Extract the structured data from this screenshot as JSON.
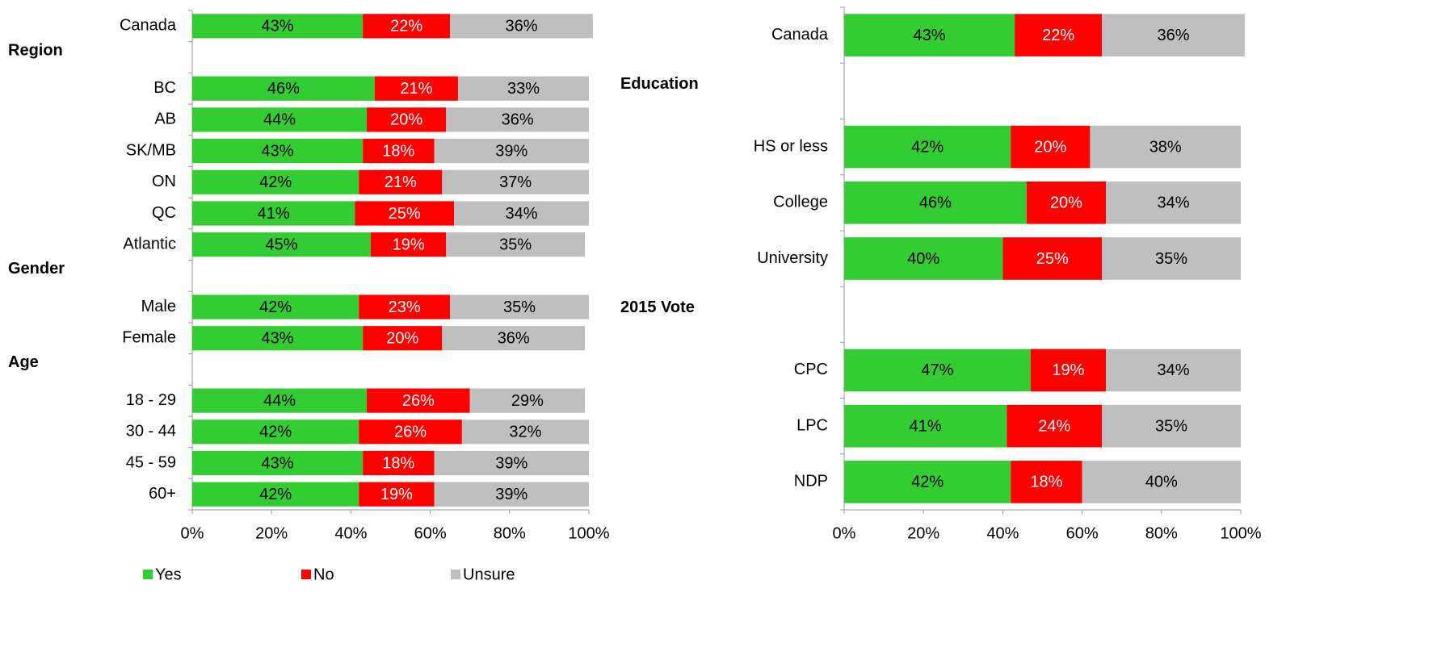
{
  "chart_data": [
    {
      "type": "stacked-bar-horizontal",
      "categories": [
        "Canada",
        null,
        "BC",
        "AB",
        "SK/MB",
        "ON",
        "QC",
        "Atlantic",
        null,
        "Male",
        "Female",
        null,
        "18 - 29",
        "30 - 44",
        "45 - 59",
        "60+"
      ],
      "row_headings": [
        null,
        "Region",
        null,
        null,
        null,
        null,
        null,
        null,
        "Gender",
        null,
        null,
        "Age",
        null,
        null,
        null,
        null
      ],
      "series": [
        {
          "name": "Yes",
          "color": "#33cc33",
          "label_color": "#000000",
          "values": [
            43,
            null,
            46,
            44,
            43,
            42,
            41,
            45,
            null,
            42,
            43,
            null,
            44,
            42,
            43,
            42
          ],
          "value_labels": [
            "43%",
            null,
            "46%",
            "44%",
            "43%",
            "42%",
            "41%",
            "45%",
            null,
            "42%",
            "43%",
            null,
            "44%",
            "42%",
            "43%",
            "42%"
          ]
        },
        {
          "name": "No",
          "color": "#ff0000",
          "label_color": "#ffffff",
          "values": [
            22,
            null,
            21,
            20,
            18,
            21,
            25,
            19,
            null,
            23,
            20,
            null,
            26,
            26,
            18,
            19
          ],
          "value_labels": [
            "22%",
            null,
            "21%",
            "20%",
            "18%",
            "21%",
            "25%",
            "19%",
            null,
            "23%",
            "20%",
            null,
            "26%",
            "26%",
            "18%",
            "19%"
          ]
        },
        {
          "name": "Unsure",
          "color": "#bfbfbf",
          "label_color": "#000000",
          "values": [
            36,
            null,
            33,
            36,
            39,
            37,
            34,
            35,
            null,
            35,
            36,
            null,
            29,
            32,
            39,
            39
          ],
          "value_labels": [
            "36%",
            null,
            "33%",
            "36%",
            "39%",
            "37%",
            "34%",
            "35%",
            null,
            "35%",
            "36%",
            null,
            "29%",
            "32%",
            "39%",
            "39%"
          ]
        }
      ],
      "xlim": [
        0,
        100
      ],
      "xticks": [
        {
          "value": 0,
          "label": "0%"
        },
        {
          "value": 20,
          "label": "20%"
        },
        {
          "value": 40,
          "label": "40%"
        },
        {
          "value": 60,
          "label": "60%"
        },
        {
          "value": 80,
          "label": "80%"
        },
        {
          "value": 100,
          "label": "100%"
        }
      ],
      "legend": "bottom"
    },
    {
      "type": "stacked-bar-horizontal",
      "categories": [
        "Canada",
        null,
        "HS or less",
        "College",
        "University",
        null,
        "CPC",
        "LPC",
        "NDP"
      ],
      "row_headings": [
        null,
        "Education",
        null,
        null,
        null,
        "2015 Vote",
        null,
        null,
        null
      ],
      "series": [
        {
          "color": "#33cc33",
          "label_color": "#000000",
          "values": [
            43,
            null,
            42,
            46,
            40,
            null,
            47,
            41,
            42
          ],
          "value_labels": [
            "43%",
            null,
            "42%",
            "46%",
            "40%",
            null,
            "47%",
            "41%",
            "42%"
          ]
        },
        {
          "color": "#ff0000",
          "label_color": "#ffffff",
          "values": [
            22,
            null,
            20,
            20,
            25,
            null,
            19,
            24,
            18
          ],
          "value_labels": [
            "22%",
            null,
            "20%",
            "20%",
            "25%",
            null,
            "19%",
            "24%",
            "18%"
          ]
        },
        {
          "color": "#bfbfbf",
          "label_color": "#000000",
          "values": [
            36,
            null,
            38,
            34,
            35,
            null,
            34,
            35,
            40
          ],
          "value_labels": [
            "36%",
            null,
            "38%",
            "34%",
            "35%",
            null,
            "34%",
            "35%",
            "40%"
          ]
        }
      ],
      "xlim": [
        0,
        100
      ],
      "xticks": [
        {
          "value": 0,
          "label": "0%"
        },
        {
          "value": 20,
          "label": "20%"
        },
        {
          "value": 40,
          "label": "40%"
        },
        {
          "value": 60,
          "label": "60%"
        },
        {
          "value": 80,
          "label": "80%"
        },
        {
          "value": 100,
          "label": "100%"
        }
      ],
      "legend": false
    }
  ]
}
